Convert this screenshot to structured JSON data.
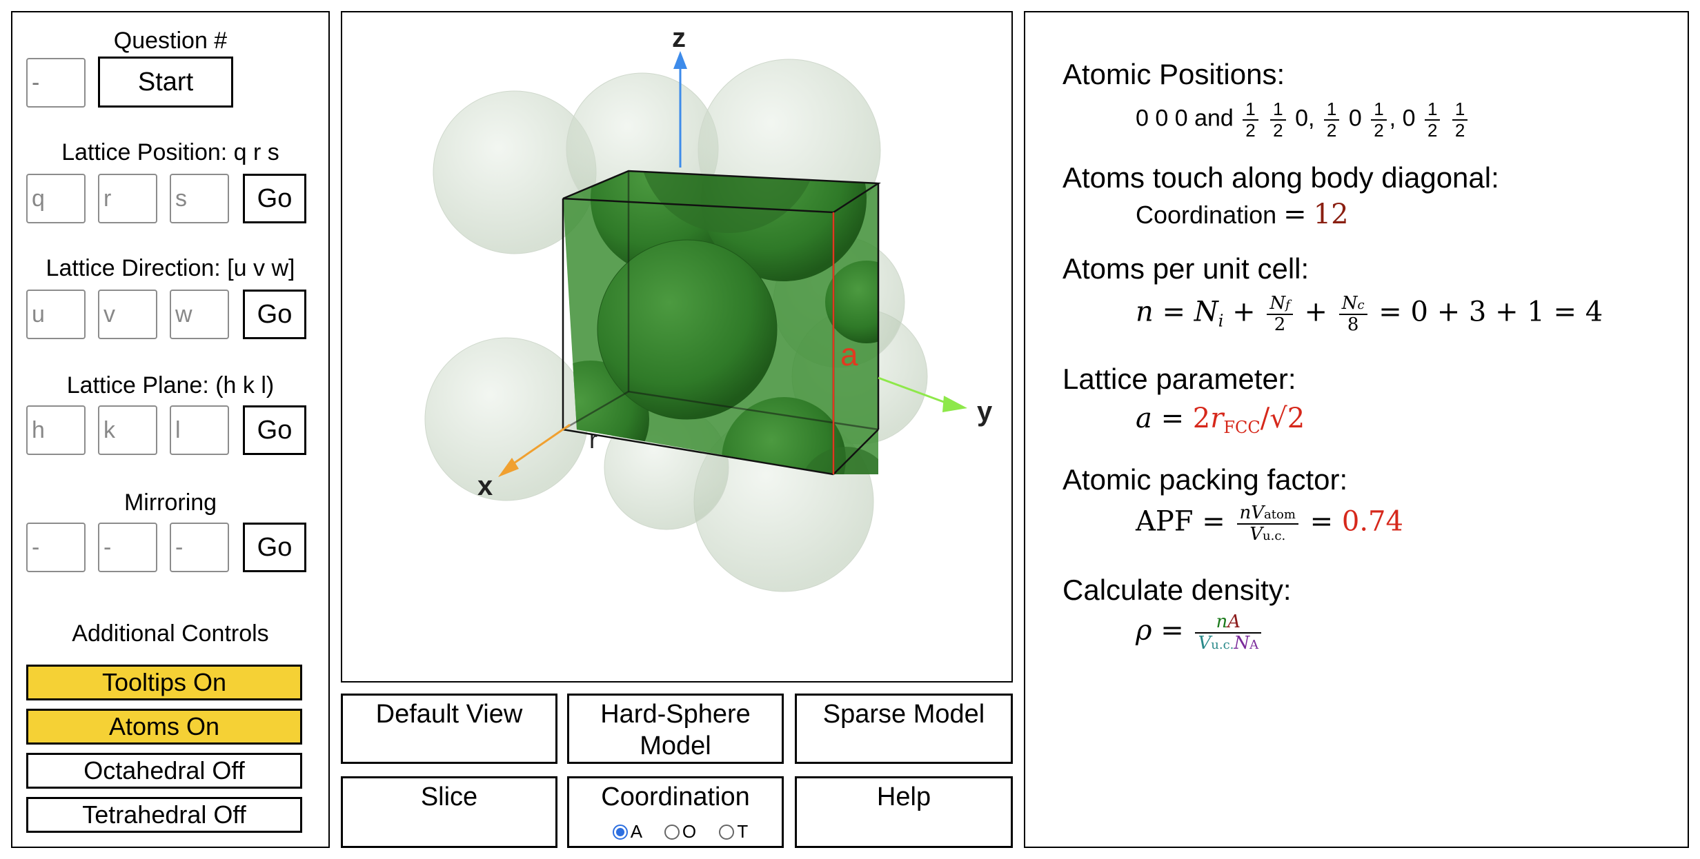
{
  "left": {
    "question": {
      "label": "Question #",
      "input_value": "-",
      "start_label": "Start"
    },
    "lattice_position": {
      "label": "Lattice Position: q r s",
      "placeholders": [
        "q",
        "r",
        "s"
      ],
      "go_label": "Go"
    },
    "lattice_direction": {
      "label": "Lattice Direction: [u v w]",
      "placeholders": [
        "u",
        "v",
        "w"
      ],
      "go_label": "Go"
    },
    "lattice_plane": {
      "label": "Lattice Plane: (h k l)",
      "placeholders": [
        "h",
        "k",
        "l"
      ],
      "go_label": "Go"
    },
    "mirroring": {
      "label": "Mirroring",
      "placeholders": [
        "-",
        "-",
        "-"
      ],
      "go_label": "Go"
    },
    "additional": {
      "label": "Additional Controls",
      "tooltips": "Tooltips On",
      "atoms": "Atoms On",
      "octahedral": "Octahedral Off",
      "tetrahedral": "Tetrahedral Off"
    }
  },
  "viewer": {
    "axis_z": "z",
    "axis_y": "y",
    "axis_x": "x",
    "label_a": "a",
    "label_r": "r",
    "colors": {
      "sphere": "#2f7d2a",
      "z_axis": "#3d8bea",
      "y_axis": "#8ee84a",
      "x_axis": "#f0a030",
      "a_label": "#e03a20"
    }
  },
  "view_buttons": {
    "default_view": "Default View",
    "hard_sphere_1": "Hard-Sphere",
    "hard_sphere_2": "Model",
    "sparse_model": "Sparse Model",
    "slice": "Slice",
    "coordination": "Coordination",
    "radio_a": "A",
    "radio_o": "O",
    "radio_t": "T",
    "help": "Help"
  },
  "info": {
    "positions_title": "Atomic Positions:",
    "positions_prefix": "0 0 0 and",
    "atoms_touch_title": "Atoms touch along body diagonal:",
    "coordination_label": "Coordination",
    "coordination_value": "12",
    "atoms_per_cell_title": "Atoms per unit cell:",
    "atoms_per_cell_result": "= 0 + 3 + 1 = 4",
    "lattice_param_title": "Lattice parameter:",
    "apf_title": "Atomic packing factor:",
    "apf_value": "0.74",
    "density_title": "Calculate density:"
  }
}
